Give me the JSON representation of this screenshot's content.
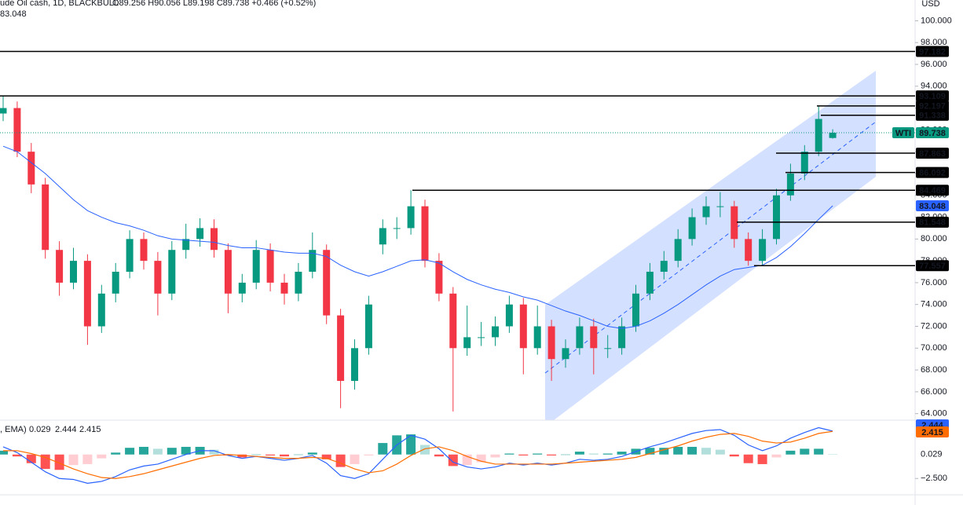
{
  "chart_data": [
    {
      "type": "candlestick",
      "symbol": "ude Oil cash, 1D, BLACKBULL",
      "ohlc": "O89.256 H90.056 L89.198 C89.738 +0.466 (+0.52%)",
      "currency": "USD",
      "up_color": "#089981",
      "down_color": "#f23645",
      "open": [
        91.5,
        92,
        88,
        85,
        79,
        76,
        78,
        72,
        75,
        77,
        80,
        78,
        75,
        79,
        80,
        81,
        79,
        75,
        76,
        79,
        76,
        75,
        77,
        79,
        73,
        67,
        70,
        79.5,
        81,
        81,
        83,
        78,
        75,
        70,
        71,
        71,
        72,
        74,
        70,
        72,
        69,
        70,
        72,
        70,
        70,
        72,
        75,
        77,
        78,
        80,
        82,
        83,
        83,
        80,
        78,
        80,
        84,
        86,
        88,
        89.256
      ],
      "high": [
        93.109,
        92.6,
        88.8,
        85.6,
        79.8,
        79.2,
        78.6,
        75.8,
        77.8,
        80.8,
        80.6,
        78.8,
        79.8,
        81.4,
        81.9,
        81.8,
        79.6,
        76.8,
        79.9,
        79.6,
        76.8,
        77.8,
        80.6,
        79.5,
        73.6,
        70.8,
        74.8,
        81.8,
        82,
        84.469,
        83.6,
        78.7,
        75.6,
        73.9,
        72.4,
        72.9,
        74.8,
        74.6,
        73.9,
        72.6,
        70.8,
        72.8,
        72.7,
        71.2,
        72.8,
        75.8,
        77.8,
        78.9,
        80.9,
        82.8,
        83.9,
        84.3,
        83.5,
        80.6,
        80.9,
        84.6,
        86.9,
        88.6,
        92.197,
        90.056
      ],
      "low": [
        90.8,
        87.5,
        84.2,
        78.2,
        74.8,
        75.4,
        70.3,
        71.4,
        74.2,
        76.4,
        77.2,
        73,
        74.4,
        78.2,
        79.3,
        78.3,
        73.2,
        74.2,
        75.4,
        75.2,
        74,
        74.3,
        76.4,
        72.2,
        64.5,
        66.2,
        69.4,
        78.6,
        80,
        80.4,
        77.4,
        74.3,
        64.2,
        69.3,
        70.2,
        70.2,
        71.4,
        67.6,
        69.4,
        67,
        68.2,
        69.4,
        67.6,
        69.1,
        69.4,
        71.5,
        74.4,
        76.3,
        77.4,
        79.4,
        81.3,
        82,
        79.2,
        77.557,
        77.6,
        79.5,
        83.5,
        85.4,
        87.6,
        89.198
      ],
      "close": [
        92,
        88,
        85,
        79,
        76,
        78,
        72,
        75,
        77,
        80,
        78,
        75,
        79,
        80,
        81,
        79,
        75,
        76,
        79,
        76,
        75,
        77,
        79,
        73,
        67,
        70,
        74,
        81,
        81,
        83,
        78,
        75,
        70,
        71,
        71,
        72,
        74,
        70,
        72,
        69,
        70,
        72,
        70,
        70,
        72,
        75,
        77,
        78,
        80,
        82,
        83,
        83,
        80,
        78,
        80,
        84,
        86,
        88,
        91,
        89.738
      ],
      "ema": {
        "color": "#2962ff",
        "values": [
          88.5,
          88,
          87,
          86,
          84.8,
          83.6,
          82.6,
          82,
          81.5,
          81.2,
          80.8,
          80.3,
          80,
          79.9,
          79.8,
          79.7,
          79.4,
          79.2,
          79.2,
          79,
          78.8,
          78.7,
          78.7,
          78.4,
          77.6,
          77,
          76.6,
          77,
          77.5,
          78,
          78.1,
          77.8,
          77,
          76.3,
          75.8,
          75.4,
          75.1,
          74.7,
          74.4,
          73.9,
          73.4,
          73,
          72.5,
          72,
          71.8,
          72,
          72.5,
          73.2,
          74,
          74.9,
          75.8,
          76.6,
          77.2,
          77.4,
          77.6,
          78.3,
          79.3,
          80.5,
          81.8,
          83.048
        ]
      },
      "last": {
        "label": "WTI",
        "value": 89.738,
        "color": "#089981"
      },
      "levels": [
        97.182,
        93.109,
        92.197,
        91.338,
        87.863,
        86.092,
        84.469,
        81.548,
        77.557
      ],
      "ylim": [
        63.4,
        101.9
      ],
      "yticks": [
        {
          "value": 64,
          "label": "64.000"
        },
        {
          "value": 66,
          "label": "66.000"
        },
        {
          "value": 68,
          "label": "68.000"
        },
        {
          "value": 70,
          "label": "70.000"
        },
        {
          "value": 72,
          "label": "72.000"
        },
        {
          "value": 74,
          "label": "74.000"
        },
        {
          "value": 76,
          "label": "76.000"
        },
        {
          "value": 78,
          "label": "78.000"
        },
        {
          "value": 80,
          "label": "80.000"
        },
        {
          "value": 82,
          "label": "82.000"
        },
        {
          "value": 84,
          "label": "84.000"
        },
        {
          "value": 86,
          "label": "86.000"
        },
        {
          "value": 88,
          "label": "88.000"
        },
        {
          "value": 90,
          "label": "90.000"
        },
        {
          "value": 92,
          "label": "92.000"
        },
        {
          "value": 94,
          "label": "94.000"
        },
        {
          "value": 96,
          "label": "96.000"
        },
        {
          "value": 98,
          "label": "98.000"
        },
        {
          "value": 100,
          "label": "100.000"
        }
      ]
    },
    {
      "type": "macd",
      "label": ", EMA)",
      "macd": {
        "color": "#2962ff",
        "values": [
          0.8,
          0.2,
          -0.8,
          -1.8,
          -2.5,
          -2.6,
          -3,
          -2.8,
          -2.3,
          -1.6,
          -1.2,
          -1,
          -0.5,
          0,
          0.4,
          0.4,
          -0.1,
          -0.4,
          -0.2,
          -0.4,
          -0.6,
          -0.4,
          -0.1,
          -0.9,
          -2.2,
          -2.5,
          -2,
          -0.5,
          1,
          2,
          1.6,
          0.6,
          -0.8,
          -1.3,
          -1.5,
          -1.3,
          -0.9,
          -1.1,
          -0.9,
          -1.1,
          -0.9,
          -0.5,
          -0.6,
          -0.5,
          -0.2,
          0.3,
          0.8,
          1.2,
          1.7,
          2.2,
          2.5,
          2.6,
          2,
          1,
          0.4,
          0.9,
          1.7,
          2.3,
          2.8,
          2.444
        ]
      },
      "signal": {
        "color": "#ff6d00",
        "values": [
          0.4,
          0.4,
          0.1,
          -0.3,
          -0.9,
          -1.5,
          -2,
          -2.4,
          -2.5,
          -2.3,
          -2,
          -1.6,
          -1.2,
          -0.8,
          -0.4,
          -0.1,
          0,
          -0.1,
          -0.2,
          -0.3,
          -0.4,
          -0.4,
          -0.3,
          -0.4,
          -0.9,
          -1.5,
          -1.9,
          -1.7,
          -1,
          -0.1,
          0.6,
          0.8,
          0.4,
          -0.2,
          -0.7,
          -1,
          -1,
          -1,
          -1,
          -1,
          -0.9,
          -0.8,
          -0.7,
          -0.6,
          -0.5,
          -0.3,
          0.1,
          0.5,
          0.9,
          1.4,
          1.8,
          2.1,
          2.2,
          1.9,
          1.4,
          1.2,
          1.3,
          1.7,
          2.2,
          2.415
        ]
      },
      "histogram": {
        "colors": [
          "#26a69a",
          "#b2dfdb",
          "#ff5252",
          "#ffcdd2"
        ],
        "values": [
          0.4,
          -0.2,
          -0.9,
          -1.5,
          -1.6,
          -1.1,
          -1,
          -0.4,
          0.2,
          0.7,
          0.8,
          0.6,
          0.7,
          0.8,
          0.8,
          0.5,
          -0.1,
          -0.3,
          0,
          -0.1,
          -0.2,
          0,
          0.2,
          -0.5,
          -1.3,
          -1,
          -0.1,
          1.2,
          2,
          2.1,
          1,
          -0.2,
          -1.2,
          -1.1,
          -0.8,
          -0.3,
          0.1,
          -0.1,
          0.1,
          -0.1,
          0,
          0.3,
          0.1,
          0.1,
          0.3,
          0.6,
          0.7,
          0.7,
          0.8,
          0.8,
          0.7,
          0.5,
          -0.2,
          -0.9,
          -1,
          -0.3,
          0.4,
          0.6,
          0.6,
          0.029
        ]
      },
      "ylim": [
        -4.2,
        3.5
      ],
      "yticks": [
        {
          "value": -2.5,
          "label": "−2.500"
        }
      ]
    }
  ]
}
